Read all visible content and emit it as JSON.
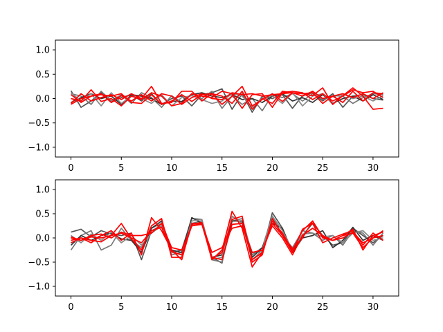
{
  "chart_data": [
    {
      "type": "line",
      "title": "",
      "xlabel": "",
      "ylabel": "",
      "xlim": [
        -1.55,
        32.55
      ],
      "ylim": [
        -1.2,
        1.2
      ],
      "xticks": [
        0,
        5,
        10,
        15,
        20,
        25,
        30
      ],
      "yticks": [
        -1.0,
        -0.5,
        0.0,
        0.5,
        1.0
      ],
      "xtick_labels": [
        "0",
        "5",
        "10",
        "15",
        "20",
        "25",
        "30"
      ],
      "ytick_labels": [
        "−1.0",
        "−0.5",
        "0.0",
        "0.5",
        "1.0"
      ],
      "grid": false,
      "x": [
        0,
        1,
        2,
        3,
        4,
        5,
        6,
        7,
        8,
        9,
        10,
        11,
        12,
        13,
        14,
        15,
        16,
        17,
        18,
        19,
        20,
        21,
        22,
        23,
        24,
        25,
        26,
        27,
        28,
        29,
        30,
        31
      ],
      "series": [
        {
          "color": "#555555",
          "values": [
            0.16,
            -0.18,
            -0.05,
            0.12,
            -0.08,
            0.02,
            0.08,
            -0.05,
            0.1,
            -0.12,
            0.0,
            0.05,
            -0.15,
            0.08,
            0.12,
            0.2,
            -0.22,
            0.1,
            -0.28,
            0.05,
            0.0,
            0.08,
            -0.2,
            0.06,
            0.12,
            -0.05,
            0.1,
            -0.18,
            0.05,
            0.08,
            0.0,
            -0.03
          ]
        },
        {
          "color": "#777777",
          "values": [
            0.1,
            0.05,
            -0.12,
            0.15,
            -0.05,
            0.08,
            -0.1,
            0.12,
            0.02,
            -0.18,
            0.06,
            -0.08,
            0.1,
            0.0,
            0.15,
            -0.2,
            0.05,
            -0.12,
            0.0,
            -0.25,
            0.08,
            0.02,
            0.1,
            -0.05,
            0.1,
            -0.02,
            0.06,
            0.05,
            -0.1,
            0.02,
            0.1,
            0.08
          ]
        },
        {
          "color": "#333333",
          "values": [
            -0.08,
            0.02,
            0.1,
            0.0,
            0.05,
            -0.12,
            0.08,
            0.05,
            0.0,
            -0.12,
            -0.05,
            -0.06,
            0.08,
            0.12,
            0.05,
            0.02,
            0.08,
            -0.02,
            0.0,
            -0.08,
            0.05,
            0.1,
            -0.05,
            0.02,
            -0.08,
            0.08,
            -0.1,
            0.0,
            0.05,
            -0.05,
            0.08,
            -0.02
          ]
        },
        {
          "color": "#888888",
          "values": [
            0.12,
            -0.05,
            0.1,
            -0.15,
            0.12,
            -0.1,
            0.05,
            0.0,
            -0.1,
            0.08,
            -0.15,
            0.02,
            0.06,
            -0.02,
            -0.1,
            -0.05,
            0.1,
            0.05,
            -0.18,
            0.02,
            0.06,
            -0.1,
            0.12,
            -0.15,
            0.05,
            0.1,
            -0.12,
            0.1,
            0.0,
            0.05,
            -0.05,
            0.06
          ]
        },
        {
          "color": "#ff0000",
          "values": [
            -0.1,
            0.1,
            -0.05,
            0.02,
            0.08,
            -0.02,
            0.1,
            0.0,
            0.25,
            -0.1,
            -0.08,
            0.15,
            0.15,
            -0.05,
            0.1,
            -0.12,
            0.05,
            0.25,
            -0.15,
            -0.02,
            0.1,
            -0.06,
            0.12,
            0.1,
            0.06,
            0.22,
            -0.12,
            0.06,
            0.22,
            0.05,
            -0.22,
            -0.2
          ]
        },
        {
          "color": "#ff0000",
          "values": [
            0.0,
            -0.05,
            0.18,
            -0.06,
            0.0,
            -0.15,
            0.05,
            -0.02,
            0.12,
            0.05,
            -0.15,
            -0.1,
            0.1,
            0.05,
            0.02,
            0.15,
            0.1,
            -0.2,
            0.08,
            0.1,
            -0.18,
            0.12,
            0.15,
            0.12,
            -0.02,
            0.1,
            -0.05,
            0.05,
            0.18,
            0.12,
            0.15,
            0.02
          ]
        },
        {
          "color": "#ff0000",
          "values": [
            0.08,
            -0.08,
            0.05,
            0.1,
            -0.08,
            0.06,
            -0.05,
            0.08,
            -0.05,
            0.1,
            0.05,
            -0.12,
            0.02,
            0.1,
            0.0,
            -0.02,
            0.12,
            0.08,
            0.1,
            0.05,
            0.08,
            0.1,
            0.12,
            0.05,
            0.15,
            0.0,
            0.05,
            0.1,
            0.02,
            0.1,
            0.0,
            0.12
          ]
        },
        {
          "color": "#ff0000",
          "values": [
            -0.12,
            0.0,
            0.05,
            0.08,
            0.05,
            0.1,
            -0.08,
            -0.1,
            0.08,
            -0.12,
            -0.05,
            0.08,
            -0.06,
            0.08,
            0.1,
            0.05,
            -0.1,
            0.15,
            -0.22,
            0.0,
            -0.1,
            0.15,
            0.12,
            0.1,
            0.12,
            -0.1,
            0.05,
            -0.08,
            0.15,
            -0.05,
            0.12,
            0.1
          ]
        }
      ]
    },
    {
      "type": "line",
      "title": "",
      "xlabel": "",
      "ylabel": "",
      "xlim": [
        -1.55,
        32.55
      ],
      "ylim": [
        -1.2,
        1.2
      ],
      "xticks": [
        0,
        5,
        10,
        15,
        20,
        25,
        30
      ],
      "yticks": [
        -1.0,
        -0.5,
        0.0,
        0.5,
        1.0
      ],
      "xtick_labels": [
        "0",
        "5",
        "10",
        "15",
        "20",
        "25",
        "30"
      ],
      "ytick_labels": [
        "−1.0",
        "−0.5",
        "0.0",
        "0.5",
        "1.0"
      ],
      "grid": false,
      "x": [
        0,
        1,
        2,
        3,
        4,
        5,
        6,
        7,
        8,
        9,
        10,
        11,
        12,
        13,
        14,
        15,
        16,
        17,
        18,
        19,
        20,
        21,
        22,
        23,
        24,
        25,
        26,
        27,
        28,
        29,
        30,
        31
      ],
      "series": [
        {
          "color": "#555555",
          "values": [
            0.12,
            0.18,
            0.02,
            0.15,
            0.08,
            0.05,
            0.1,
            -0.45,
            0.15,
            0.25,
            -0.3,
            -0.25,
            0.4,
            0.38,
            -0.4,
            -0.52,
            0.45,
            0.3,
            -0.3,
            -0.28,
            0.52,
            0.2,
            -0.3,
            0.05,
            0.3,
            0.05,
            -0.15,
            -0.1,
            0.2,
            0.05,
            -0.1,
            0.05
          ]
        },
        {
          "color": "#777777",
          "values": [
            -0.25,
            0.05,
            0.15,
            -0.25,
            -0.15,
            0.2,
            -0.05,
            -0.2,
            0.2,
            0.3,
            -0.35,
            -0.3,
            0.3,
            0.35,
            -0.45,
            -0.5,
            0.35,
            0.4,
            -0.35,
            -0.2,
            0.45,
            0.05,
            -0.2,
            0.15,
            0.1,
            -0.05,
            0.05,
            -0.15,
            0.15,
            0.1,
            -0.15,
            0.1
          ]
        },
        {
          "color": "#333333",
          "values": [
            -0.15,
            0.05,
            -0.05,
            0.05,
            0.1,
            -0.02,
            -0.05,
            -0.3,
            0.2,
            0.35,
            -0.25,
            -0.3,
            0.42,
            0.3,
            -0.4,
            -0.35,
            0.35,
            0.35,
            -0.4,
            -0.2,
            0.3,
            0.2,
            -0.3,
            0.0,
            0.05,
            0.15,
            -0.2,
            -0.05,
            0.22,
            -0.05,
            0.05,
            -0.05
          ]
        },
        {
          "color": "#888888",
          "values": [
            0.05,
            -0.1,
            0.08,
            -0.05,
            0.12,
            -0.1,
            0.05,
            -0.15,
            0.1,
            0.25,
            -0.3,
            -0.35,
            0.35,
            0.38,
            -0.45,
            -0.4,
            0.45,
            0.3,
            -0.45,
            -0.25,
            0.45,
            0.15,
            -0.25,
            0.08,
            0.1,
            0.02,
            0.05,
            -0.1,
            0.1,
            0.15,
            -0.05,
            0.0
          ]
        },
        {
          "color": "#ff0000",
          "values": [
            -0.05,
            0.0,
            -0.1,
            0.05,
            0.15,
            -0.05,
            0.1,
            -0.35,
            0.42,
            0.15,
            -0.25,
            -0.45,
            0.3,
            0.3,
            -0.45,
            -0.25,
            0.55,
            0.2,
            -0.6,
            -0.3,
            0.35,
            0.1,
            -0.25,
            0.15,
            0.35,
            0.0,
            -0.05,
            0.05,
            0.18,
            -0.25,
            0.05,
            0.12
          ]
        },
        {
          "color": "#ff0000",
          "values": [
            0.0,
            -0.05,
            0.02,
            0.0,
            0.05,
            0.3,
            -0.02,
            -0.25,
            0.25,
            0.4,
            -0.4,
            -0.4,
            0.28,
            0.32,
            -0.42,
            -0.3,
            0.38,
            0.45,
            -0.5,
            -0.35,
            0.4,
            0.05,
            -0.3,
            0.18,
            0.3,
            -0.1,
            0.0,
            0.08,
            0.15,
            -0.15,
            0.1,
            -0.05
          ]
        },
        {
          "color": "#ff0000",
          "values": [
            -0.1,
            0.0,
            -0.05,
            -0.08,
            0.05,
            0.1,
            0.0,
            -0.1,
            0.15,
            0.22,
            -0.28,
            -0.35,
            0.25,
            0.28,
            -0.4,
            -0.45,
            0.28,
            0.3,
            -0.45,
            -0.3,
            0.3,
            0.05,
            -0.22,
            0.0,
            0.35,
            0.02,
            -0.05,
            0.05,
            0.1,
            -0.2,
            0.0,
            0.15
          ]
        },
        {
          "color": "#ff0000",
          "values": [
            0.02,
            -0.05,
            0.05,
            0.08,
            0.0,
            0.12,
            0.05,
            0.05,
            0.1,
            0.3,
            -0.2,
            -0.25,
            0.25,
            0.3,
            -0.3,
            -0.2,
            0.2,
            0.25,
            -0.3,
            -0.25,
            0.25,
            0.0,
            -0.35,
            0.05,
            0.2,
            0.05,
            -0.05,
            0.0,
            0.12,
            -0.1,
            0.0,
            0.05
          ]
        }
      ]
    }
  ]
}
